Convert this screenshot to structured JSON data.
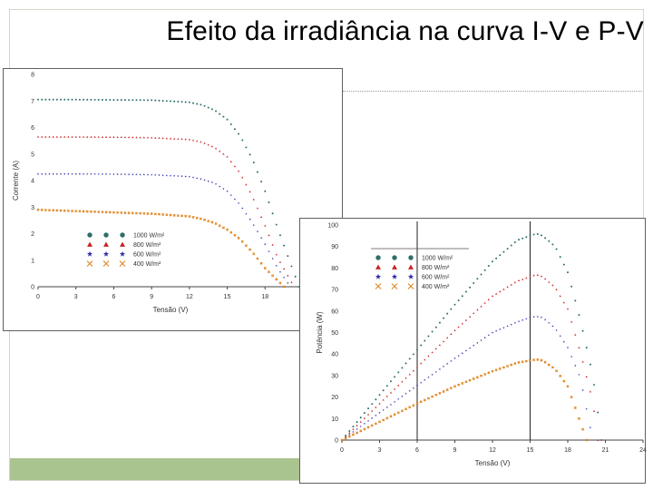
{
  "slide": {
    "title": "Efeito da irradiância na curva I-V e P-V"
  },
  "colors": {
    "footer": "#a9c48f",
    "s1000": "#2e6e6a",
    "s800": "#cc2222",
    "s600": "#2a2aa8",
    "s400": "#e08a2a"
  },
  "chart_data": [
    {
      "type": "scatter",
      "title": "",
      "xlabel": "Tensão (V)",
      "ylabel": "Corrente (A)",
      "xlim": [
        0,
        21
      ],
      "ylim": [
        0,
        8
      ],
      "xticks": [
        "0",
        "3",
        "6",
        "9",
        "12",
        "15",
        "18"
      ],
      "yticks": [
        "0",
        "1",
        "2",
        "3",
        "4",
        "5",
        "6",
        "7",
        "8"
      ],
      "grid": false,
      "legend_position": "lower-left",
      "series": [
        {
          "name": "1000 W/m²",
          "marker": "circle",
          "color": "#2e6e6a",
          "x": [
            0,
            3,
            6,
            9,
            12,
            13,
            14,
            15,
            16,
            17,
            18,
            19,
            20,
            20.7
          ],
          "y": [
            7.05,
            7.05,
            7.04,
            7.03,
            6.95,
            6.85,
            6.65,
            6.3,
            5.7,
            4.8,
            3.6,
            2.2,
            0.9,
            0
          ]
        },
        {
          "name": "800 W/m²",
          "marker": "triangle",
          "color": "#cc2222",
          "x": [
            0,
            3,
            6,
            9,
            12,
            13,
            14,
            15,
            16,
            17,
            18,
            19,
            20.3
          ],
          "y": [
            5.65,
            5.65,
            5.64,
            5.62,
            5.55,
            5.45,
            5.25,
            4.9,
            4.3,
            3.4,
            2.3,
            1.1,
            0
          ]
        },
        {
          "name": "600 W/m²",
          "marker": "star",
          "color": "#2a2aa8",
          "x": [
            0,
            3,
            6,
            9,
            12,
            13,
            14,
            15,
            16,
            17,
            18,
            19,
            20
          ],
          "y": [
            4.25,
            4.25,
            4.24,
            4.22,
            4.15,
            4.05,
            3.9,
            3.6,
            3.1,
            2.4,
            1.6,
            0.7,
            0
          ]
        },
        {
          "name": "400 W/m²",
          "marker": "cross",
          "color": "#e08a2a",
          "x": [
            0,
            3,
            6,
            9,
            12,
            13,
            14,
            15,
            16,
            17,
            18,
            19.5
          ],
          "y": [
            2.9,
            2.85,
            2.8,
            2.75,
            2.65,
            2.55,
            2.4,
            2.15,
            1.8,
            1.3,
            0.7,
            0
          ]
        }
      ]
    },
    {
      "type": "scatter",
      "title": "",
      "xlabel": "Tensão (V)",
      "ylabel": "Potência (W)",
      "xlim": [
        0,
        24
      ],
      "ylim": [
        0,
        100
      ],
      "xticks": [
        "0",
        "3",
        "6",
        "9",
        "12",
        "15",
        "18",
        "21",
        "24"
      ],
      "yticks": [
        "0",
        "10",
        "20",
        "30",
        "40",
        "50",
        "60",
        "70",
        "80",
        "90",
        "100"
      ],
      "grid": false,
      "reference_lines_x": [
        6,
        15
      ],
      "legend_position": "top-left",
      "series": [
        {
          "name": "1000 W/m²",
          "marker": "circle",
          "color": "#2e6e6a",
          "x": [
            0,
            3,
            6,
            9,
            12,
            14,
            15,
            15.5,
            16,
            17,
            18,
            19,
            20,
            20.7
          ],
          "y": [
            0,
            21,
            42,
            63,
            83,
            93,
            95,
            96,
            95,
            90,
            78,
            56,
            30,
            0
          ]
        },
        {
          "name": "800 W/m²",
          "marker": "triangle",
          "color": "#cc2222",
          "x": [
            0,
            3,
            6,
            9,
            12,
            14,
            15,
            15.5,
            16,
            17,
            18,
            19,
            20,
            20.4
          ],
          "y": [
            0,
            17,
            34,
            51,
            67,
            74,
            76,
            77,
            76,
            71,
            61,
            41,
            18,
            0
          ]
        },
        {
          "name": "600 W/m²",
          "marker": "star",
          "color": "#2a2aa8",
          "x": [
            0,
            3,
            6,
            9,
            12,
            14,
            15,
            15.5,
            16,
            17,
            18,
            19,
            20
          ],
          "y": [
            0,
            12.7,
            25.4,
            38,
            50,
            55,
            57,
            57.5,
            57,
            52,
            43,
            29,
            0
          ]
        },
        {
          "name": "400 W/m²",
          "marker": "cross",
          "color": "#e08a2a",
          "x": [
            0,
            3,
            6,
            9,
            12,
            14,
            15,
            15.5,
            16,
            17,
            18,
            19.5
          ],
          "y": [
            0,
            8.5,
            17,
            25,
            32,
            36,
            37,
            37.5,
            37,
            33,
            25,
            0
          ]
        }
      ]
    }
  ]
}
